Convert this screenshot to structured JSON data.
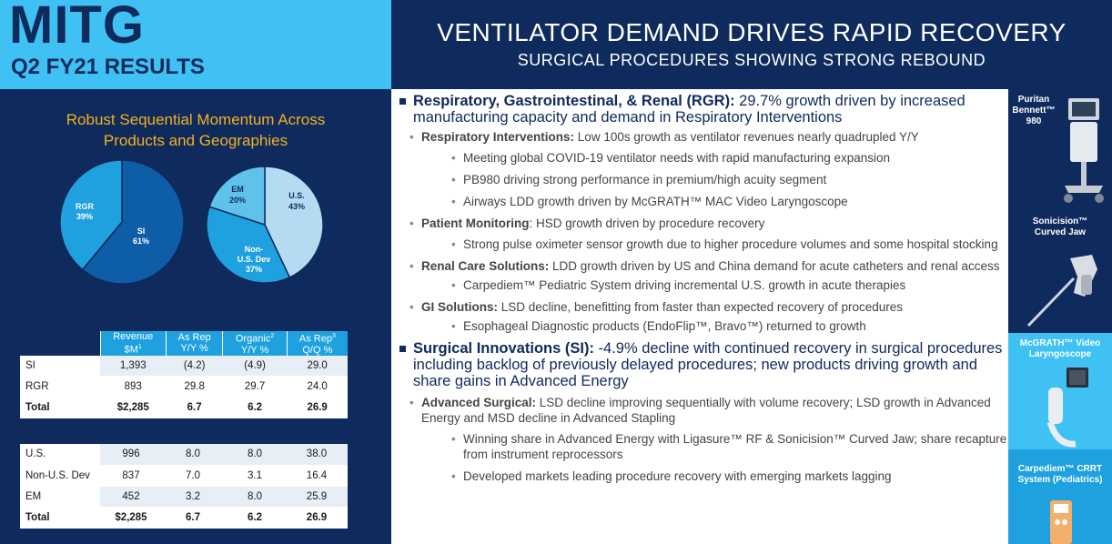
{
  "header": {
    "brand": "MITG",
    "subtitle": "Q2 FY21 RESULTS",
    "title": "VENTILATOR DEMAND DRIVES RAPID RECOVERY",
    "subtitle2": "SURGICAL PROCEDURES SHOWING STRONG REBOUND"
  },
  "left": {
    "title_line1": "Robust Sequential Momentum Across",
    "title_line2": "Products and Geographies"
  },
  "chart_data": [
    {
      "type": "pie",
      "slices": [
        {
          "label": "SI",
          "value": 61
        },
        {
          "label": "RGR",
          "value": 39
        }
      ],
      "colors": {
        "SI": "#0d5ea6",
        "RGR": "#1fa1df"
      }
    },
    {
      "type": "pie",
      "slices": [
        {
          "label": "U.S.",
          "value": 43
        },
        {
          "label": "Non-U.S. Dev",
          "value": 37
        },
        {
          "label": "EM",
          "value": 20
        }
      ],
      "colors": {
        "U.S.": "#b3dcf2",
        "Non-U.S. Dev": "#1fa1df",
        "EM": "#5fc2ea"
      }
    }
  ],
  "pie_labels": {
    "si": "SI",
    "si_pct": "61%",
    "rgr": "RGR",
    "rgr_pct": "39%",
    "us": "U.S.",
    "us_pct": "43%",
    "em": "EM",
    "em_pct": "20%",
    "nonus_1": "Non-",
    "nonus_2": "U.S. Dev",
    "nonus_pct": "37%"
  },
  "table": {
    "headers": [
      {
        "l1": "Revenue",
        "l2": "$M",
        "sup": "1"
      },
      {
        "l1": "As Rep",
        "l2": "Y/Y %",
        "sup": ""
      },
      {
        "l1": "Organic",
        "l2": "Y/Y %",
        "sup": "2",
        "sup_on_l1": true
      },
      {
        "l1": "As Rep",
        "l2": "Q/Q %",
        "sup": "3",
        "sup_on_l1": true
      }
    ],
    "segment_rows": [
      {
        "label": "SI",
        "values": [
          "1,393",
          "(4.2)",
          "(4.9)",
          "29.0"
        ]
      },
      {
        "label": "RGR",
        "values": [
          "893",
          "29.8",
          "29.7",
          "24.0"
        ]
      },
      {
        "label": "Total",
        "values": [
          "$2,285",
          "6.7",
          "6.2",
          "26.9"
        ]
      }
    ],
    "geo_rows": [
      {
        "label": "U.S.",
        "values": [
          "996",
          "8.0",
          "8.0",
          "38.0"
        ]
      },
      {
        "label": "Non-U.S. Dev",
        "values": [
          "837",
          "7.0",
          "3.1",
          "16.4"
        ]
      },
      {
        "label": "EM",
        "values": [
          "452",
          "3.2",
          "8.0",
          "25.9"
        ]
      },
      {
        "label": "Total",
        "values": [
          "$2,285",
          "6.7",
          "6.2",
          "26.9"
        ]
      }
    ]
  },
  "content": {
    "rgr": {
      "head": "Respiratory, Gastrointestinal, & Renal (RGR):",
      "text": " 29.7% growth driven by increased manufacturing capacity and demand in Respiratory Interventions"
    },
    "ri": {
      "head": "Respiratory Interventions:",
      "text": " Low 100s growth as ventilator revenues nearly quadrupled Y/Y"
    },
    "ri_1": "Meeting global COVID-19 ventilator needs with rapid manufacturing expansion",
    "ri_2": "PB980 driving strong performance in premium/high acuity segment",
    "ri_3": "Airways LDD growth driven by McGRATH™ MAC Video Laryngoscope",
    "pm": {
      "head": "Patient Monitoring",
      "text": ": HSD growth driven by procedure recovery"
    },
    "pm_1": "Strong pulse oximeter sensor growth due to higher procedure volumes and some hospital stocking",
    "rcs": {
      "head": "Renal Care Solutions:",
      "text": " LDD growth driven by US and China demand for acute catheters and renal access"
    },
    "rcs_1": "Carpediem™ Pediatric System driving incremental U.S. growth in acute therapies",
    "gi": {
      "head": "GI Solutions:",
      "text": " LSD decline, benefitting from faster than expected recovery of procedures"
    },
    "gi_1": "Esophageal Diagnostic products (EndoFlip™, Bravo™) returned to growth",
    "si": {
      "head": "Surgical Innovations (SI):",
      "text": " -4.9% decline with continued recovery in surgical procedures including backlog of previously delayed procedures; new products driving growth and share gains in Advanced Energy"
    },
    "as": {
      "head": "Advanced Surgical:",
      "text": " LSD decline improving sequentially with volume recovery; LSD growth in Advanced Energy and MSD decline in Advanced Stapling"
    },
    "as_1": "Winning share in Advanced Energy with Ligasure™ RF & Sonicision™ Curved Jaw; share recapture from instrument reprocessors",
    "as_2": "Developed markets leading procedure recovery with emerging markets lagging"
  },
  "sidebar": {
    "p1": {
      "l1": "Puritan",
      "l2": "Bennett™",
      "l3": "980"
    },
    "p2": {
      "l1": "Sonicision™",
      "l2": "Curved Jaw"
    },
    "p3": {
      "l1": "McGRATH™ Video",
      "l2": "Laryngoscope"
    },
    "p4": {
      "l1": "Carpediem™ CRRT",
      "l2": "System (Pediatrics)"
    }
  }
}
